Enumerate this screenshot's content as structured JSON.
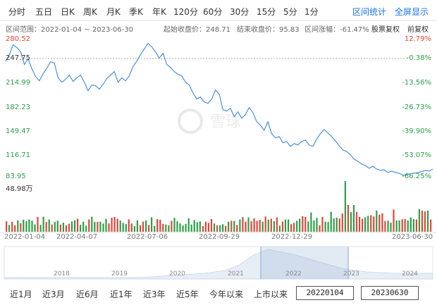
{
  "period_tabs": [
    {
      "label": "分时"
    },
    {
      "label": "五日"
    },
    {
      "label": "日K"
    },
    {
      "label": "周K"
    },
    {
      "label": "月K"
    },
    {
      "label": "季K"
    },
    {
      "label": "年K"
    },
    {
      "label": "120分"
    },
    {
      "label": "60分"
    },
    {
      "label": "30分"
    },
    {
      "label": "15分"
    },
    {
      "label": "5分"
    },
    {
      "label": "1分"
    }
  ],
  "actions": {
    "range_stats": "区间统计",
    "fullscreen": "全屏显示"
  },
  "info": {
    "range_label": "区间范围：2022-01-04 ~ 2023-06-30",
    "start_close": "起始收盘价：248.71",
    "end_close": "结束收盘价：95.83",
    "change": "区间涨幅：-61.47%",
    "adjust_label": "股票复权",
    "adjust_mode": "前复权"
  },
  "watermark": "雪球",
  "colors": {
    "line": "#4a90e2",
    "up": "#e0463b",
    "down": "#2aa048",
    "negative_pct": "#2aa048",
    "positive_pct": "#e0463b",
    "accent": "#1a73e8"
  },
  "chart_data": {
    "type": "line",
    "x_start": "2022-01-04",
    "x_end": "2023-06-30",
    "y_ticks": [
      "280.52",
      "247.75",
      "214.99",
      "182.23",
      "149.47",
      "116.71",
      "83.95"
    ],
    "pct_ticks": [
      "12.79%",
      "-0.38%",
      "-13.56%",
      "-26.73%",
      "-39.90%",
      "-53.07%",
      "-66.25%"
    ],
    "ylim": [
      83.95,
      280.52
    ],
    "reference_line": 247.75,
    "x_tick_labels": [
      "2022-01-04",
      "2022-04-07",
      "2022-07-06",
      "2022-09-29",
      "2022-12-29",
      "2023-06-30"
    ],
    "series": [
      {
        "values": [
          248.71,
          258,
          272,
          268,
          262,
          244,
          252,
          238,
          227,
          221,
          231,
          239,
          248,
          246,
          225,
          219,
          223,
          229,
          220,
          225,
          229,
          219,
          207,
          215,
          214,
          209,
          216,
          224,
          229,
          234,
          219,
          225,
          221,
          228,
          241,
          249,
          258,
          266,
          274,
          269,
          262,
          253,
          260,
          244,
          240,
          234,
          230,
          228,
          219,
          215,
          204,
          195,
          198,
          191,
          189,
          195,
          208,
          202,
          180,
          178,
          182,
          170,
          177,
          168,
          173,
          183,
          176,
          163,
          158,
          151,
          163,
          146,
          140,
          142,
          133,
          135,
          128,
          132,
          130,
          135,
          137,
          130,
          128,
          138,
          146,
          152,
          147,
          142,
          136,
          129,
          123,
          121,
          116,
          110,
          107,
          103,
          101,
          97,
          100,
          96,
          94,
          95,
          91,
          93,
          91,
          90,
          87,
          88,
          89,
          90,
          91,
          92,
          94,
          93,
          95.83
        ]
      }
    ],
    "volume": {
      "label": "48.98万",
      "max": 48.98
    }
  },
  "navigator": {
    "years": [
      "2018",
      "2019",
      "2020",
      "2021",
      "2022",
      "2023",
      "2024"
    ]
  },
  "range_bar": {
    "buttons": [
      "近1月",
      "近3月",
      "近6月",
      "近1年",
      "近3年",
      "近5年",
      "今年以来",
      "上市以来"
    ],
    "start_date": "20220104",
    "end_date": "20230630"
  }
}
